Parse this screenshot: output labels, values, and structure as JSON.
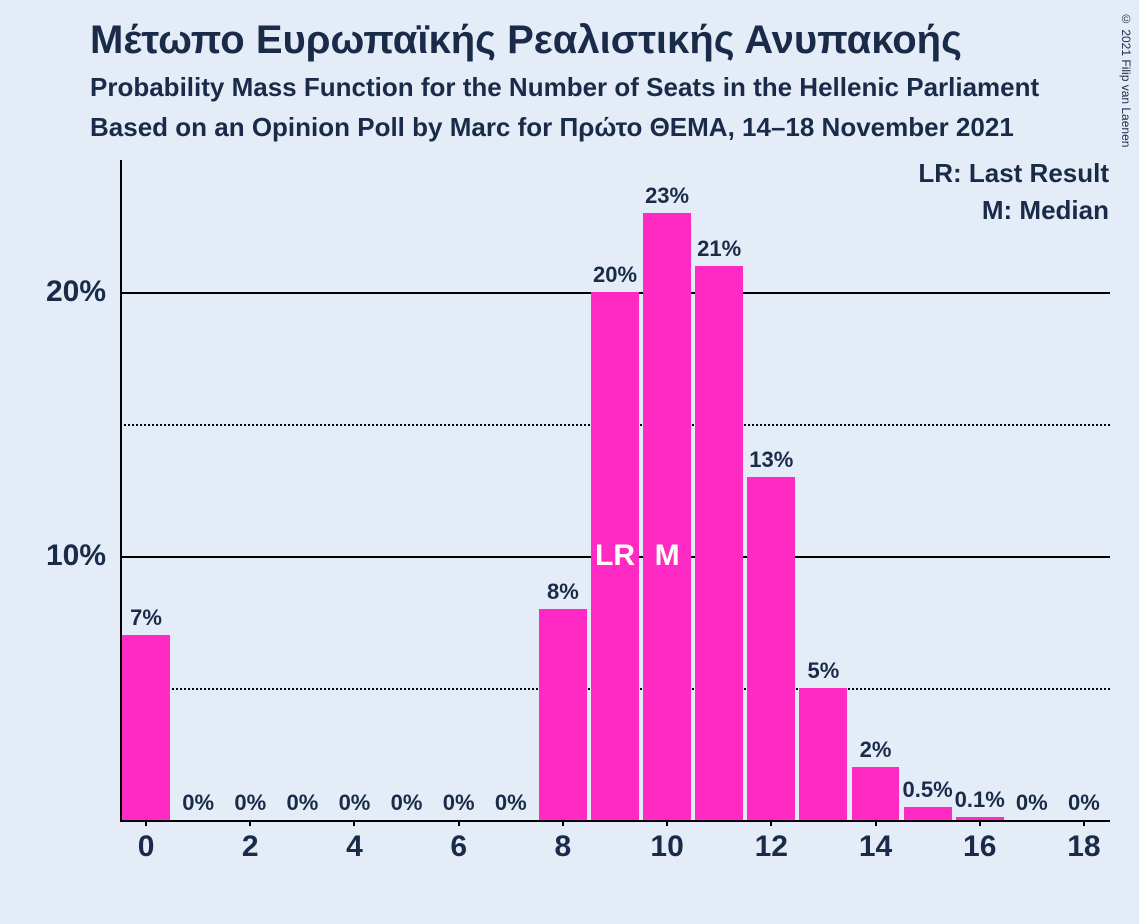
{
  "title": "Μέτωπο Ευρωπαϊκής Ρεαλιστικής Ανυπακοής",
  "subtitle1": "Probability Mass Function for the Number of Seats in the Hellenic Parliament",
  "subtitle2": "Based on an Opinion Poll by Marc for Πρώτο ΘΕΜΑ, 14–18 November 2021",
  "legend": {
    "lr": "LR: Last Result",
    "m": "M: Median"
  },
  "copyright": "© 2021 Filip van Laenen",
  "chart": {
    "type": "bar",
    "background_color": "#e4edf7",
    "bar_color": "#ff29c3",
    "text_color": "#1a2b4a",
    "axis_color": "#000000",
    "grid_solid_color": "#000000",
    "grid_dotted_color": "#000000",
    "bar_width_ratio": 0.92,
    "title_fontsize": 40,
    "subtitle_fontsize": 26,
    "axis_label_fontsize": 30,
    "bar_label_fontsize": 22,
    "inner_label_fontsize": 30,
    "inner_label_color": "#ffffff",
    "ylim": [
      0,
      25
    ],
    "y_gridlines": [
      5,
      10,
      15,
      20
    ],
    "y_gridline_styles": {
      "5": "dotted",
      "10": "solid",
      "15": "dotted",
      "20": "solid"
    },
    "y_tick_labels": {
      "10": "10%",
      "20": "20%"
    },
    "x_ticks": [
      0,
      2,
      4,
      6,
      8,
      10,
      12,
      14,
      16,
      18
    ],
    "categories": [
      0,
      1,
      2,
      3,
      4,
      5,
      6,
      7,
      8,
      9,
      10,
      11,
      12,
      13,
      14,
      15,
      16,
      17,
      18
    ],
    "values": [
      7,
      0,
      0,
      0,
      0,
      0,
      0,
      0,
      8,
      20,
      23,
      21,
      13,
      5,
      2,
      0.5,
      0.1,
      0,
      0
    ],
    "value_labels": [
      "7%",
      "0%",
      "0%",
      "0%",
      "0%",
      "0%",
      "0%",
      "0%",
      "8%",
      "20%",
      "23%",
      "21%",
      "13%",
      "5%",
      "2%",
      "0.5%",
      "0.1%",
      "0%",
      "0%"
    ],
    "inner_labels": {
      "9": "LR",
      "10": "M"
    }
  }
}
